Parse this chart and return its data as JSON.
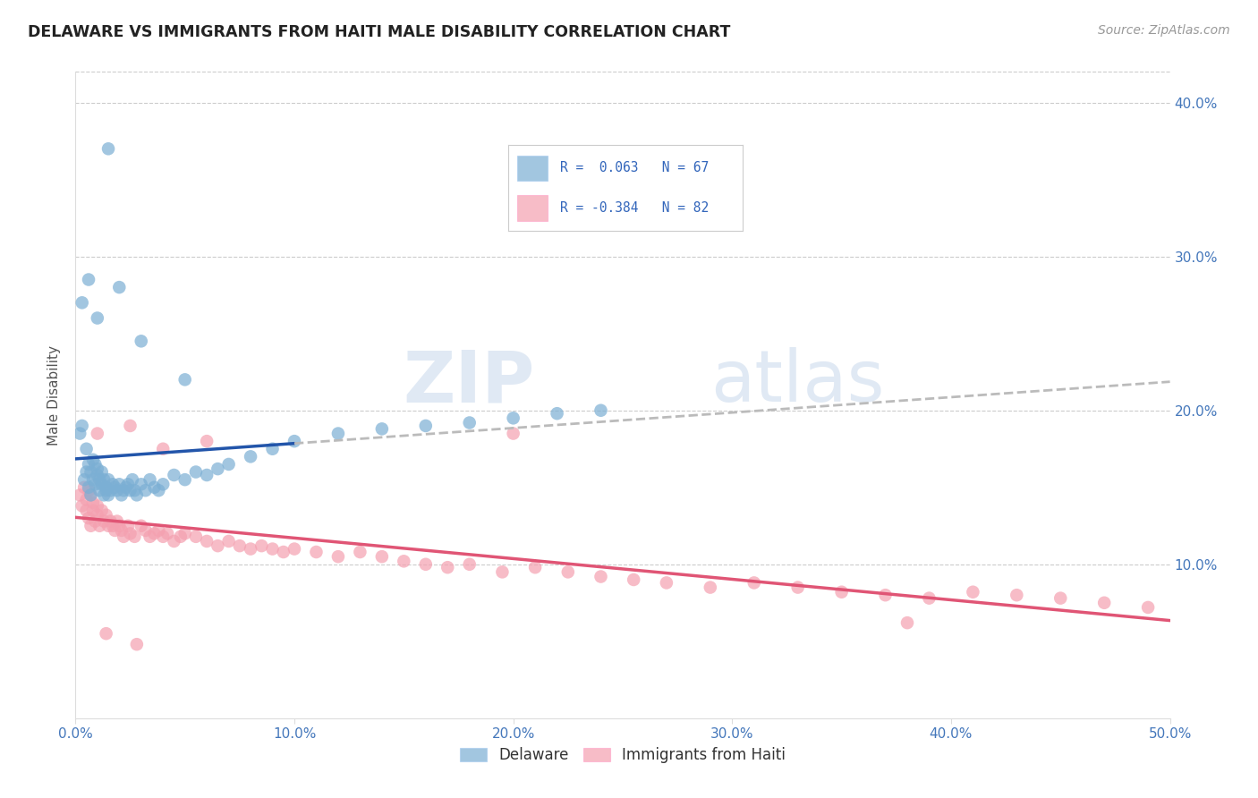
{
  "title": "DELAWARE VS IMMIGRANTS FROM HAITI MALE DISABILITY CORRELATION CHART",
  "source": "Source: ZipAtlas.com",
  "ylabel": "Male Disability",
  "x_min": 0.0,
  "x_max": 0.5,
  "y_min": 0.0,
  "y_max": 0.42,
  "x_ticks": [
    0.0,
    0.1,
    0.2,
    0.3,
    0.4,
    0.5
  ],
  "x_tick_labels": [
    "0.0%",
    "10.0%",
    "20.0%",
    "30.0%",
    "40.0%",
    "50.0%"
  ],
  "y_ticks": [
    0.1,
    0.2,
    0.3,
    0.4
  ],
  "y_tick_labels_right": [
    "10.0%",
    "20.0%",
    "30.0%",
    "40.0%"
  ],
  "R_delaware": 0.063,
  "N_delaware": 67,
  "R_haiti": -0.384,
  "N_haiti": 82,
  "color_delaware": "#7BAFD4",
  "color_haiti": "#F4A0B0",
  "color_delaware_line": "#2255AA",
  "color_haiti_line": "#E05575",
  "color_dashed_line": "#BBBBBB",
  "watermark_color": "#C8D8EC",
  "delaware_x": [
    0.002,
    0.003,
    0.004,
    0.005,
    0.005,
    0.006,
    0.006,
    0.007,
    0.007,
    0.008,
    0.008,
    0.009,
    0.009,
    0.01,
    0.01,
    0.011,
    0.011,
    0.012,
    0.012,
    0.013,
    0.013,
    0.014,
    0.014,
    0.015,
    0.015,
    0.016,
    0.017,
    0.018,
    0.019,
    0.02,
    0.021,
    0.022,
    0.023,
    0.024,
    0.025,
    0.026,
    0.027,
    0.028,
    0.03,
    0.032,
    0.034,
    0.036,
    0.038,
    0.04,
    0.045,
    0.05,
    0.055,
    0.06,
    0.065,
    0.07,
    0.08,
    0.09,
    0.1,
    0.12,
    0.14,
    0.16,
    0.18,
    0.2,
    0.22,
    0.24,
    0.003,
    0.006,
    0.01,
    0.015,
    0.02,
    0.03,
    0.05
  ],
  "delaware_y": [
    0.185,
    0.19,
    0.155,
    0.175,
    0.16,
    0.15,
    0.165,
    0.145,
    0.16,
    0.155,
    0.168,
    0.152,
    0.165,
    0.158,
    0.162,
    0.148,
    0.155,
    0.152,
    0.16,
    0.145,
    0.155,
    0.15,
    0.148,
    0.145,
    0.155,
    0.148,
    0.152,
    0.15,
    0.148,
    0.152,
    0.145,
    0.148,
    0.15,
    0.152,
    0.148,
    0.155,
    0.148,
    0.145,
    0.152,
    0.148,
    0.155,
    0.15,
    0.148,
    0.152,
    0.158,
    0.155,
    0.16,
    0.158,
    0.162,
    0.165,
    0.17,
    0.175,
    0.18,
    0.185,
    0.188,
    0.19,
    0.192,
    0.195,
    0.198,
    0.2,
    0.27,
    0.285,
    0.26,
    0.37,
    0.28,
    0.245,
    0.22
  ],
  "haiti_x": [
    0.002,
    0.003,
    0.004,
    0.005,
    0.005,
    0.006,
    0.006,
    0.007,
    0.007,
    0.008,
    0.008,
    0.009,
    0.01,
    0.01,
    0.011,
    0.012,
    0.013,
    0.014,
    0.015,
    0.016,
    0.017,
    0.018,
    0.019,
    0.02,
    0.021,
    0.022,
    0.024,
    0.025,
    0.027,
    0.03,
    0.032,
    0.034,
    0.036,
    0.038,
    0.04,
    0.042,
    0.045,
    0.048,
    0.05,
    0.055,
    0.06,
    0.065,
    0.07,
    0.075,
    0.08,
    0.085,
    0.09,
    0.095,
    0.1,
    0.11,
    0.12,
    0.13,
    0.14,
    0.15,
    0.16,
    0.17,
    0.18,
    0.195,
    0.21,
    0.225,
    0.24,
    0.255,
    0.27,
    0.29,
    0.31,
    0.33,
    0.35,
    0.37,
    0.39,
    0.41,
    0.43,
    0.45,
    0.47,
    0.49,
    0.01,
    0.025,
    0.04,
    0.06,
    0.2,
    0.38,
    0.014,
    0.028
  ],
  "haiti_y": [
    0.145,
    0.138,
    0.15,
    0.142,
    0.135,
    0.148,
    0.13,
    0.145,
    0.125,
    0.14,
    0.135,
    0.128,
    0.138,
    0.132,
    0.125,
    0.135,
    0.128,
    0.132,
    0.125,
    0.128,
    0.125,
    0.122,
    0.128,
    0.125,
    0.122,
    0.118,
    0.125,
    0.12,
    0.118,
    0.125,
    0.122,
    0.118,
    0.12,
    0.122,
    0.118,
    0.12,
    0.115,
    0.118,
    0.12,
    0.118,
    0.115,
    0.112,
    0.115,
    0.112,
    0.11,
    0.112,
    0.11,
    0.108,
    0.11,
    0.108,
    0.105,
    0.108,
    0.105,
    0.102,
    0.1,
    0.098,
    0.1,
    0.095,
    0.098,
    0.095,
    0.092,
    0.09,
    0.088,
    0.085,
    0.088,
    0.085,
    0.082,
    0.08,
    0.078,
    0.082,
    0.08,
    0.078,
    0.075,
    0.072,
    0.185,
    0.19,
    0.175,
    0.18,
    0.185,
    0.062,
    0.055,
    0.048
  ]
}
